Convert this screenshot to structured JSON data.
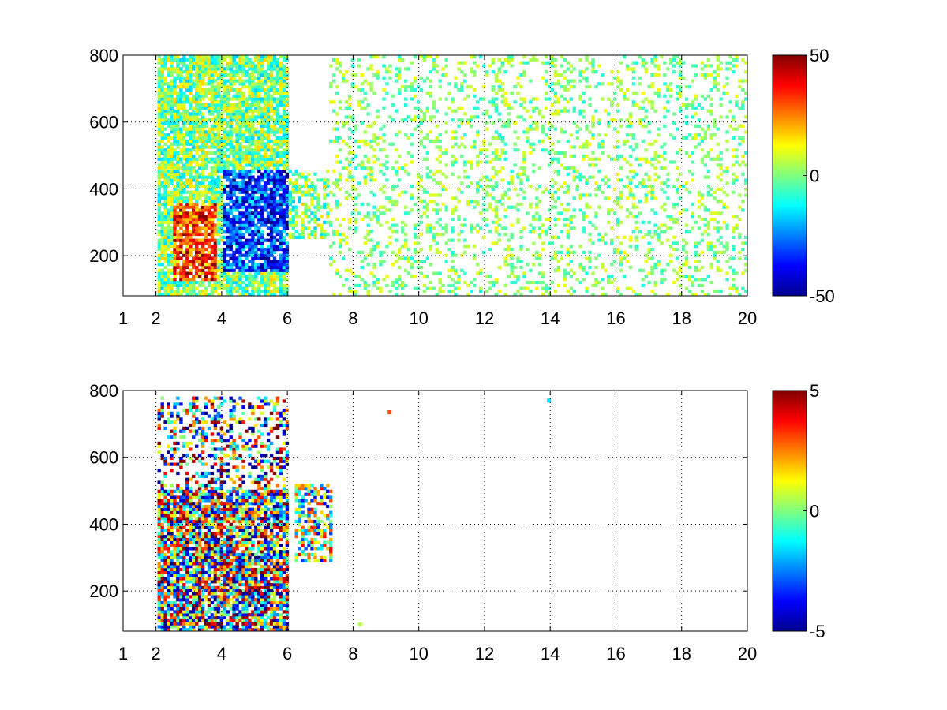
{
  "chart_data": [
    {
      "type": "heatmap",
      "title": "",
      "xlabel": "",
      "ylabel": "",
      "xlim": [
        1,
        20
      ],
      "ylim": [
        80,
        800
      ],
      "xticks": [
        1,
        2,
        4,
        6,
        8,
        10,
        12,
        14,
        16,
        18,
        20
      ],
      "xtick_labels": [
        "1",
        "2",
        "4",
        "6",
        "8",
        "10",
        "12",
        "14",
        "16",
        "18",
        "20"
      ],
      "yticks": [
        200,
        400,
        600,
        800
      ],
      "ytick_labels": [
        "200",
        "400",
        "600",
        "800"
      ],
      "grid": true,
      "grid_style": "dotted",
      "colormap": "jet",
      "colorbar": {
        "range": [
          -50,
          50
        ],
        "ticks": [
          50,
          0,
          -50
        ],
        "tick_labels": [
          "50",
          "0",
          "-50"
        ]
      },
      "description_regions": [
        {
          "x": [
            2,
            6
          ],
          "y": [
            80,
            800
          ],
          "level": "dense"
        },
        {
          "x": [
            6,
            7.2
          ],
          "y": [
            250,
            450
          ],
          "level": "medium"
        },
        {
          "x": [
            7.2,
            20
          ],
          "y": [
            80,
            800
          ],
          "level": "sparse"
        }
      ],
      "value_peaks": [
        {
          "x": [
            2.5,
            3.8
          ],
          "y": [
            120,
            350
          ],
          "value": 40
        },
        {
          "x": [
            4,
            6
          ],
          "y": [
            150,
            450
          ],
          "value": -40
        }
      ]
    },
    {
      "type": "heatmap",
      "title": "",
      "xlabel": "",
      "ylabel": "",
      "xlim": [
        1,
        20
      ],
      "ylim": [
        80,
        800
      ],
      "xticks": [
        1,
        2,
        4,
        6,
        8,
        10,
        12,
        14,
        16,
        18,
        20
      ],
      "xtick_labels": [
        "1",
        "2",
        "4",
        "6",
        "8",
        "10",
        "12",
        "14",
        "16",
        "18",
        "20"
      ],
      "yticks": [
        200,
        400,
        600,
        800
      ],
      "ytick_labels": [
        "200",
        "400",
        "600",
        "800"
      ],
      "grid": true,
      "grid_style": "dotted",
      "colormap": "jet",
      "colorbar": {
        "range": [
          -5,
          5
        ],
        "ticks": [
          5,
          0,
          -5
        ],
        "tick_labels": [
          "5",
          "0",
          "-5"
        ]
      },
      "description_regions": [
        {
          "x": [
            2,
            6
          ],
          "y": [
            80,
            780
          ],
          "level": "dense"
        },
        {
          "x": [
            6.2,
            7.3
          ],
          "y": [
            280,
            520
          ],
          "level": "medium"
        }
      ],
      "isolated_points": [
        {
          "x": 9.1,
          "y": 735,
          "value": 3
        },
        {
          "x": 13.95,
          "y": 770,
          "value": -1.5
        },
        {
          "x": 8.2,
          "y": 100,
          "value": 0.5
        }
      ]
    }
  ]
}
